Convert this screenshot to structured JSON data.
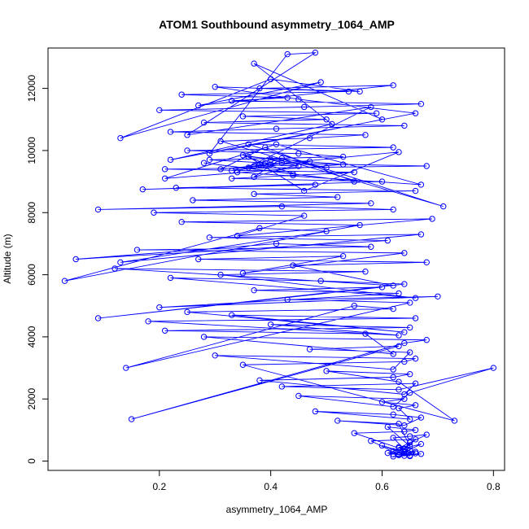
{
  "chart_data": {
    "type": "scatter",
    "title": "ATOM1 Southbound asymmetry_1064_AMP",
    "xlabel": "asymmetry_1064_AMP",
    "ylabel": "Altitude (m)",
    "xlim": [
      0.0,
      0.82
    ],
    "ylim": [
      -300,
      13300
    ],
    "x_ticks": [
      0.2,
      0.4,
      0.6,
      0.8
    ],
    "x_tick_labels": [
      "0.2",
      "0.4",
      "0.6",
      "0.8"
    ],
    "y_ticks": [
      0,
      2000,
      4000,
      6000,
      8000,
      10000,
      12000
    ],
    "y_tick_labels": [
      "0",
      "2000",
      "4000",
      "6000",
      "8000",
      "10000",
      "12000"
    ],
    "grid": false,
    "legend": "none",
    "series_color": "#0000ff",
    "marker": "open-circle",
    "connected": true,
    "series": [
      {
        "x": [
          0.62,
          0.65,
          0.63,
          0.67,
          0.64,
          0.61,
          0.66,
          0.63,
          0.65,
          0.62,
          0.64,
          0.66,
          0.63,
          0.65,
          0.6,
          0.64,
          0.67,
          0.62,
          0.65,
          0.63,
          0.58,
          0.66,
          0.64,
          0.62,
          0.65,
          0.68,
          0.63,
          0.55,
          0.64,
          0.66,
          0.61,
          0.65,
          0.63,
          0.52,
          0.64,
          0.67,
          0.62,
          0.48,
          0.65,
          0.63,
          0.66,
          0.6,
          0.64,
          0.45,
          0.62,
          0.65,
          0.8,
          0.63,
          0.42,
          0.66,
          0.64,
          0.38,
          0.62,
          0.65,
          0.5,
          0.63,
          0.73,
          0.35,
          0.64,
          0.66,
          0.3,
          0.62,
          0.65,
          0.47,
          0.63,
          0.15,
          0.64,
          0.68,
          0.28,
          0.62,
          0.57,
          0.21,
          0.65,
          0.4,
          0.63,
          0.18,
          0.66,
          0.33,
          0.64,
          0.25,
          0.62,
          0.55,
          0.14,
          0.65,
          0.43,
          0.7,
          0.2,
          0.63,
          0.37,
          0.6,
          0.09,
          0.64,
          0.49,
          0.22,
          0.66,
          0.31,
          0.57,
          0.12,
          0.62,
          0.44,
          0.68,
          0.27,
          0.53,
          0.35,
          0.64,
          0.16,
          0.58,
          0.41,
          0.05,
          0.61,
          0.29,
          0.67,
          0.13,
          0.5,
          0.38,
          0.03,
          0.56,
          0.24,
          0.69,
          0.34,
          0.46,
          0.19,
          0.62,
          0.42,
          0.09,
          0.58,
          0.26,
          0.52,
          0.37,
          0.66,
          0.23,
          0.48,
          0.17,
          0.6,
          0.33,
          0.44,
          0.55,
          0.21,
          0.68,
          0.39,
          0.29,
          0.53,
          0.45,
          0.25,
          0.62,
          0.36,
          0.71,
          0.31,
          0.47,
          0.57,
          0.22,
          0.41,
          0.64,
          0.28,
          0.5,
          0.35,
          0.59,
          0.2,
          0.46,
          0.67,
          0.33,
          0.43,
          0.24,
          0.54,
          0.38,
          0.62,
          0.27,
          0.49,
          0.13,
          0.4,
          0.56,
          0.3,
          0.45,
          0.66,
          0.22,
          0.51,
          0.37,
          0.6,
          0.29,
          0.43,
          0.48,
          0.25,
          0.58,
          0.34,
          0.67,
          0.41,
          0.21,
          0.53,
          0.36,
          0.46,
          0.63,
          0.31,
          0.39,
          0.55,
          0.28,
          0.44,
          0.35,
          0.5,
          0.42,
          0.37,
          0.47,
          0.33,
          0.4,
          0.45,
          0.38,
          0.36,
          0.42,
          0.37,
          0.4,
          0.39
        ],
        "y": [
          150,
          180,
          200,
          230,
          170,
          260,
          300,
          190,
          350,
          220,
          400,
          250,
          450,
          160,
          500,
          280,
          550,
          320,
          600,
          210,
          650,
          700,
          380,
          750,
          800,
          850,
          420,
          900,
          950,
          1000,
          1100,
          480,
          1200,
          1300,
          1150,
          1400,
          1500,
          1600,
          1350,
          1700,
          1800,
          1900,
          2000,
          2100,
          1750,
          2200,
          3000,
          2300,
          2400,
          2500,
          2150,
          2600,
          2700,
          2800,
          2900,
          2550,
          1300,
          3100,
          3200,
          3300,
          3400,
          2950,
          3500,
          3600,
          3700,
          1350,
          3800,
          3900,
          4000,
          3450,
          4100,
          4200,
          4300,
          4400,
          4050,
          4500,
          4600,
          4700,
          4150,
          4800,
          4900,
          5000,
          3000,
          5100,
          5200,
          5300,
          4950,
          5400,
          5500,
          5600,
          4600,
          5700,
          5800,
          5900,
          5250,
          6000,
          6100,
          6200,
          5650,
          6300,
          6400,
          6500,
          6600,
          6050,
          6700,
          6800,
          6900,
          7000,
          6500,
          7100,
          7200,
          7300,
          6400,
          7400,
          7500,
          5800,
          7600,
          7700,
          7800,
          7250,
          7900,
          8000,
          8100,
          8200,
          8100,
          8300,
          8400,
          8500,
          8600,
          8700,
          8800,
          8900,
          8750,
          9000,
          9100,
          9200,
          9300,
          9400,
          9500,
          9600,
          9700,
          9800,
          9900,
          10000,
          10100,
          10200,
          8200,
          10300,
          10400,
          10500,
          10600,
          10700,
          10800,
          10900,
          11000,
          11100,
          11200,
          11300,
          11400,
          11500,
          11600,
          11700,
          11800,
          11900,
          12000,
          12100,
          11450,
          12200,
          10400,
          12300,
          11900,
          12050,
          11650,
          11200,
          9700,
          10850,
          12800,
          11000,
          9900,
          13100,
          13150,
          10500,
          11400,
          9300,
          8900,
          10200,
          9100,
          9550,
          9800,
          8700,
          9950,
          9400,
          10100,
          9000,
          9600,
          9250,
          9850,
          9450,
          9750,
          9150,
          9650,
          9350,
          9700,
          9500,
          9550,
          9450,
          9600,
          9500,
          9550,
          9520
        ]
      }
    ]
  }
}
